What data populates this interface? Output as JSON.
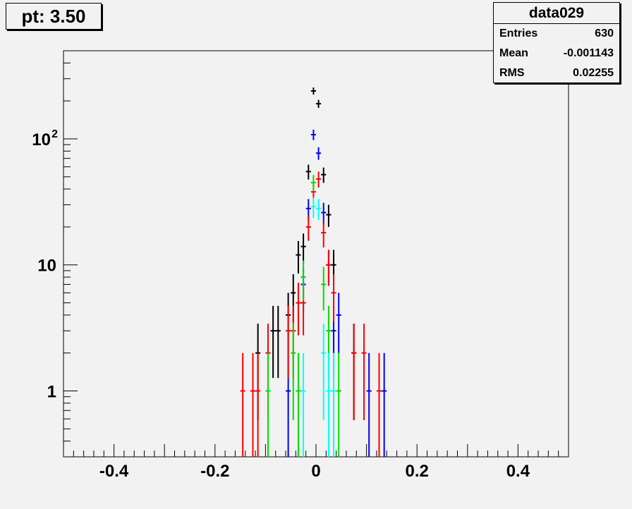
{
  "pad_title": "pt: 3.50",
  "stats": {
    "name": "data029",
    "rows": [
      {
        "label": "Entries",
        "value": "630"
      },
      {
        "label": "Mean",
        "value": "-0.001143"
      },
      {
        "label": "RMS",
        "value": "0.02255"
      }
    ]
  },
  "chart_data": {
    "type": "scatter",
    "title": "",
    "xlabel": "",
    "ylabel": "",
    "xlim": [
      -0.5,
      0.5
    ],
    "ylim": [
      0.3,
      500
    ],
    "y_scale": "log",
    "grid": false,
    "x_tick_labels": [
      {
        "value": -0.4,
        "label": "-0.4"
      },
      {
        "value": -0.2,
        "label": "-0.2"
      },
      {
        "value": 0,
        "label": "0"
      },
      {
        "value": 0.2,
        "label": "0.2"
      },
      {
        "value": 0.4,
        "label": "0.4"
      }
    ],
    "y_tick_labels": [
      {
        "value": 1,
        "label": "1"
      },
      {
        "value": 10,
        "label": "10"
      },
      {
        "value": 100,
        "label": "10",
        "exponent": "2"
      }
    ],
    "bin_width": 0.01,
    "series": [
      {
        "color": "#000000",
        "points": [
          {
            "x": -0.115,
            "y": 2
          },
          {
            "x": -0.085,
            "y": 3
          },
          {
            "x": -0.075,
            "y": 3
          },
          {
            "x": -0.055,
            "y": 4
          },
          {
            "x": -0.045,
            "y": 6
          },
          {
            "x": -0.035,
            "y": 12
          },
          {
            "x": -0.025,
            "y": 14
          },
          {
            "x": -0.015,
            "y": 55
          },
          {
            "x": -0.005,
            "y": 240
          },
          {
            "x": 0.005,
            "y": 190
          },
          {
            "x": 0.015,
            "y": 52
          },
          {
            "x": 0.025,
            "y": 25
          },
          {
            "x": 0.035,
            "y": 10
          },
          {
            "x": 0.075,
            "y": 2
          }
        ]
      },
      {
        "color": "#0000ff",
        "points": [
          {
            "x": -0.055,
            "y": 1
          },
          {
            "x": -0.025,
            "y": 7
          },
          {
            "x": -0.015,
            "y": 28
          },
          {
            "x": -0.005,
            "y": 108
          },
          {
            "x": 0.005,
            "y": 77
          },
          {
            "x": 0.015,
            "y": 26
          },
          {
            "x": 0.025,
            "y": 10
          },
          {
            "x": 0.035,
            "y": 3
          },
          {
            "x": 0.045,
            "y": 4
          },
          {
            "x": 0.105,
            "y": 1
          },
          {
            "x": 0.135,
            "y": 1
          }
        ]
      },
      {
        "color": "#ff0000",
        "points": [
          {
            "x": -0.145,
            "y": 1
          },
          {
            "x": -0.125,
            "y": 1
          },
          {
            "x": -0.115,
            "y": 1
          },
          {
            "x": -0.095,
            "y": 2
          },
          {
            "x": -0.055,
            "y": 3
          },
          {
            "x": -0.045,
            "y": 3
          },
          {
            "x": -0.035,
            "y": 5
          },
          {
            "x": -0.025,
            "y": 5
          },
          {
            "x": -0.015,
            "y": 20
          },
          {
            "x": -0.005,
            "y": 38
          },
          {
            "x": 0.005,
            "y": 48
          },
          {
            "x": 0.015,
            "y": 18
          },
          {
            "x": 0.025,
            "y": 10
          },
          {
            "x": 0.035,
            "y": 6
          },
          {
            "x": 0.075,
            "y": 2
          },
          {
            "x": 0.095,
            "y": 2
          },
          {
            "x": 0.125,
            "y": 1
          }
        ]
      },
      {
        "color": "#00dd00",
        "points": [
          {
            "x": -0.095,
            "y": 1
          },
          {
            "x": -0.045,
            "y": 2
          },
          {
            "x": -0.035,
            "y": 1
          },
          {
            "x": -0.025,
            "y": 8
          },
          {
            "x": -0.005,
            "y": 45
          },
          {
            "x": 0.015,
            "y": 7
          },
          {
            "x": 0.025,
            "y": 3
          },
          {
            "x": 0.045,
            "y": 1
          }
        ]
      },
      {
        "color": "#00ffff",
        "points": [
          {
            "x": -0.025,
            "y": 1
          },
          {
            "x": -0.005,
            "y": 29
          },
          {
            "x": 0.005,
            "y": 28
          },
          {
            "x": 0.015,
            "y": 2
          },
          {
            "x": 0.025,
            "y": 1
          },
          {
            "x": 0.035,
            "y": 1
          }
        ]
      }
    ]
  }
}
